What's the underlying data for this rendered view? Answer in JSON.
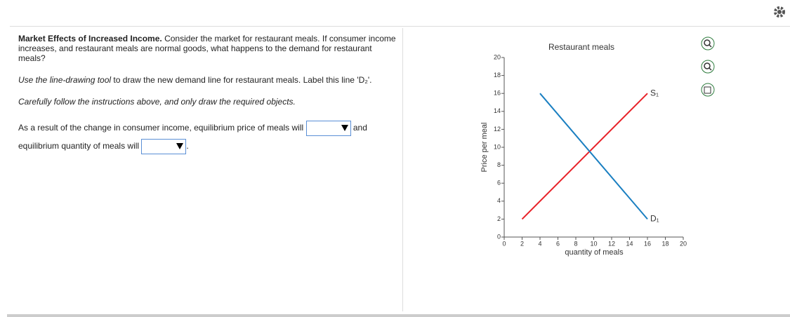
{
  "question": {
    "title": "Market Effects of Increased Income.",
    "intro": "Consider the market for restaurant meals.  If consumer income increases, and restaurant meals are normal goods, what happens to the demand for restaurant meals?",
    "tool": "Use the line-drawing tool",
    "instruction": "to draw the new demand line for restaurant meals. Label this line 'D₂'.",
    "note": "Carefully follow the instructions above, and only draw the required objects.",
    "sentence1": "As a result of the change in consumer income, equilibrium price of meals will",
    "joiner": "and",
    "sentence2": "equilibrium quantity of meals will",
    "end": "."
  },
  "chart_data": {
    "type": "line",
    "title": "Restaurant meals",
    "x_label": "quantity of meals",
    "y_label": "Price per meal",
    "xlim": [
      0,
      20
    ],
    "ylim": [
      0,
      20
    ],
    "xticks": [
      0,
      2,
      4,
      6,
      8,
      10,
      12,
      14,
      16,
      18,
      20
    ],
    "yticks": [
      0,
      2,
      4,
      6,
      8,
      10,
      12,
      14,
      16,
      18,
      20
    ],
    "series": [
      {
        "name": "S₁",
        "color": "#e8232a",
        "x": [
          2,
          16
        ],
        "values": [
          2,
          16
        ]
      },
      {
        "name": "D₁",
        "color": "#1a7fc1",
        "x": [
          4,
          16
        ],
        "values": [
          16,
          2
        ]
      }
    ]
  }
}
